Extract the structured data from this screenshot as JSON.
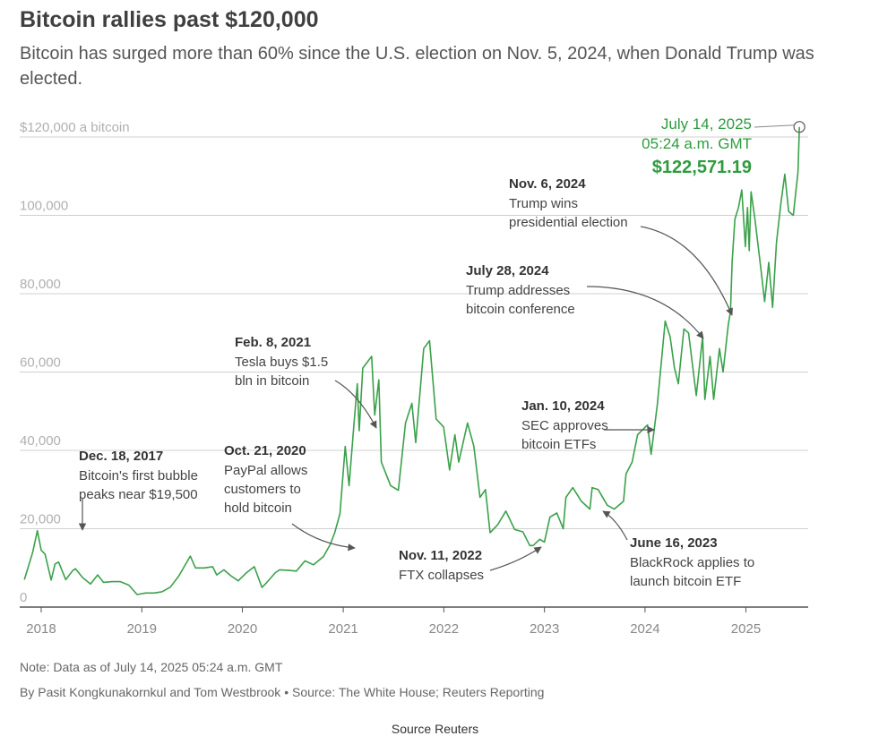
{
  "header": {
    "title": "Bitcoin rallies past $120,000",
    "subtitle": "Bitcoin has surged more than 60% since the U.S. election on Nov. 5, 2024, when Donald Trump was elected."
  },
  "footer": {
    "note": "Note: Data as of July 14, 2025 05:24 a.m. GMT",
    "byline": "By Pasit Kongkunakornkul and Tom Westbrook • Source: The White House; Reuters Reporting",
    "source": "Source Reuters"
  },
  "colors": {
    "line": "#3aa14a",
    "highlight": "#2e9b3e",
    "grid": "#d0d0d0",
    "axis": "#555555",
    "annotation": "#555555",
    "ytick": "#b0b0b0"
  },
  "chart_data": {
    "type": "line",
    "title": "Bitcoin rallies past $120,000",
    "subtitle": "Bitcoin has surged more than 60% since the U.S. election on Nov. 5, 2024, when Donald Trump was elected.",
    "xlabel": "",
    "ylabel": "",
    "ylim": [
      0,
      120000
    ],
    "xlim": [
      "2017-10-15",
      "2025-08-15"
    ],
    "grid": true,
    "x_ticks": [
      "2018",
      "2019",
      "2020",
      "2021",
      "2022",
      "2023",
      "2024",
      "2025"
    ],
    "y_ticks": [
      {
        "value": 0,
        "label": "0"
      },
      {
        "value": 20000,
        "label": "20,000"
      },
      {
        "value": 40000,
        "label": "40,000"
      },
      {
        "value": 60000,
        "label": "60,000"
      },
      {
        "value": 80000,
        "label": "80,000"
      },
      {
        "value": 100000,
        "label": "100,000"
      },
      {
        "value": 120000,
        "label": "$120,000 a bitcoin"
      }
    ],
    "series": [
      {
        "values": [
          [
            "2017-11-01",
            7000
          ],
          [
            "2017-12-01",
            14000
          ],
          [
            "2017-12-18",
            19500
          ],
          [
            "2018-01-01",
            14500
          ],
          [
            "2018-01-15",
            13500
          ],
          [
            "2018-02-06",
            6900
          ],
          [
            "2018-02-20",
            11000
          ],
          [
            "2018-03-05",
            11500
          ],
          [
            "2018-03-31",
            7000
          ],
          [
            "2018-04-25",
            9300
          ],
          [
            "2018-05-05",
            9800
          ],
          [
            "2018-06-01",
            7500
          ],
          [
            "2018-06-29",
            5900
          ],
          [
            "2018-07-25",
            8200
          ],
          [
            "2018-08-15",
            6300
          ],
          [
            "2018-09-15",
            6500
          ],
          [
            "2018-10-15",
            6500
          ],
          [
            "2018-11-15",
            5600
          ],
          [
            "2018-12-15",
            3200
          ],
          [
            "2019-01-15",
            3600
          ],
          [
            "2019-02-15",
            3600
          ],
          [
            "2019-03-15",
            3900
          ],
          [
            "2019-04-15",
            5100
          ],
          [
            "2019-05-15",
            7900
          ],
          [
            "2019-06-26",
            13000
          ],
          [
            "2019-07-15",
            10000
          ],
          [
            "2019-08-15",
            10000
          ],
          [
            "2019-09-15",
            10300
          ],
          [
            "2019-09-30",
            8200
          ],
          [
            "2019-10-26",
            9500
          ],
          [
            "2019-11-20",
            8000
          ],
          [
            "2019-12-17",
            6700
          ],
          [
            "2020-01-15",
            8700
          ],
          [
            "2020-02-13",
            10300
          ],
          [
            "2020-03-12",
            5000
          ],
          [
            "2020-03-30",
            6300
          ],
          [
            "2020-04-30",
            8800
          ],
          [
            "2020-05-15",
            9500
          ],
          [
            "2020-06-15",
            9400
          ],
          [
            "2020-07-15",
            9200
          ],
          [
            "2020-08-15",
            11800
          ],
          [
            "2020-09-15",
            10800
          ],
          [
            "2020-10-21",
            12900
          ],
          [
            "2020-11-15",
            16000
          ],
          [
            "2020-12-01",
            19000
          ],
          [
            "2020-12-20",
            23800
          ],
          [
            "2021-01-08",
            41000
          ],
          [
            "2021-01-22",
            31000
          ],
          [
            "2021-02-08",
            46000
          ],
          [
            "2021-02-21",
            57000
          ],
          [
            "2021-02-28",
            45000
          ],
          [
            "2021-03-13",
            61000
          ],
          [
            "2021-04-14",
            64000
          ],
          [
            "2021-04-25",
            49000
          ],
          [
            "2021-05-10",
            58000
          ],
          [
            "2021-05-19",
            37000
          ],
          [
            "2021-06-22",
            31000
          ],
          [
            "2021-07-20",
            29800
          ],
          [
            "2021-08-15",
            47000
          ],
          [
            "2021-09-07",
            52000
          ],
          [
            "2021-09-21",
            42000
          ],
          [
            "2021-10-20",
            66000
          ],
          [
            "2021-11-10",
            68000
          ],
          [
            "2021-12-04",
            48000
          ],
          [
            "2021-12-31",
            46000
          ],
          [
            "2022-01-22",
            35000
          ],
          [
            "2022-02-10",
            44000
          ],
          [
            "2022-02-24",
            37000
          ],
          [
            "2022-03-28",
            47000
          ],
          [
            "2022-04-20",
            41000
          ],
          [
            "2022-05-12",
            28000
          ],
          [
            "2022-06-01",
            30000
          ],
          [
            "2022-06-18",
            19000
          ],
          [
            "2022-07-15",
            21000
          ],
          [
            "2022-08-14",
            24500
          ],
          [
            "2022-09-15",
            19800
          ],
          [
            "2022-10-15",
            19200
          ],
          [
            "2022-11-09",
            15700
          ],
          [
            "2022-11-21",
            15700
          ],
          [
            "2022-12-15",
            17300
          ],
          [
            "2023-01-01",
            16600
          ],
          [
            "2023-01-21",
            23000
          ],
          [
            "2023-02-15",
            24000
          ],
          [
            "2023-03-10",
            20000
          ],
          [
            "2023-03-20",
            28000
          ],
          [
            "2023-04-14",
            30500
          ],
          [
            "2023-05-15",
            27000
          ],
          [
            "2023-06-15",
            25000
          ],
          [
            "2023-06-23",
            30500
          ],
          [
            "2023-07-15",
            30000
          ],
          [
            "2023-08-17",
            26000
          ],
          [
            "2023-09-11",
            25000
          ],
          [
            "2023-10-15",
            27000
          ],
          [
            "2023-10-24",
            34000
          ],
          [
            "2023-11-15",
            37000
          ],
          [
            "2023-12-05",
            44000
          ],
          [
            "2024-01-10",
            46500
          ],
          [
            "2024-01-23",
            39000
          ],
          [
            "2024-02-15",
            52000
          ],
          [
            "2024-03-14",
            73000
          ],
          [
            "2024-04-01",
            69000
          ],
          [
            "2024-04-17",
            61000
          ],
          [
            "2024-05-01",
            57000
          ],
          [
            "2024-05-21",
            71000
          ],
          [
            "2024-06-07",
            70000
          ],
          [
            "2024-07-05",
            54000
          ],
          [
            "2024-07-28",
            69000
          ],
          [
            "2024-08-05",
            53000
          ],
          [
            "2024-08-24",
            64000
          ],
          [
            "2024-09-06",
            53000
          ],
          [
            "2024-09-27",
            66000
          ],
          [
            "2024-10-10",
            60000
          ],
          [
            "2024-10-29",
            72000
          ],
          [
            "2024-11-06",
            75500
          ],
          [
            "2024-11-12",
            88000
          ],
          [
            "2024-11-22",
            99000
          ],
          [
            "2024-12-05",
            102000
          ],
          [
            "2024-12-17",
            106500
          ],
          [
            "2024-12-30",
            92000
          ],
          [
            "2025-01-07",
            102000
          ],
          [
            "2025-01-13",
            91000
          ],
          [
            "2025-01-20",
            106000
          ],
          [
            "2025-02-03",
            99000
          ],
          [
            "2025-02-25",
            86000
          ],
          [
            "2025-03-10",
            78000
          ],
          [
            "2025-03-25",
            88000
          ],
          [
            "2025-04-08",
            76500
          ],
          [
            "2025-04-22",
            93000
          ],
          [
            "2025-05-08",
            103000
          ],
          [
            "2025-05-22",
            110500
          ],
          [
            "2025-06-05",
            101000
          ],
          [
            "2025-06-22",
            100000
          ],
          [
            "2025-07-01",
            106000
          ],
          [
            "2025-07-09",
            111000
          ],
          [
            "2025-07-14",
            122571.19
          ]
        ]
      }
    ],
    "annotations": [
      {
        "id": "dec-2017",
        "date": "Dec. 18, 2017",
        "text": [
          "Bitcoin's first bubble",
          "peaks near $19,500"
        ]
      },
      {
        "id": "oct-2020",
        "date": "Oct. 21, 2020",
        "text": [
          "PayPal allows",
          "customers to",
          "hold bitcoin"
        ]
      },
      {
        "id": "feb-2021",
        "date": "Feb. 8, 2021",
        "text": [
          "Tesla buys $1.5",
          "bln in bitcoin"
        ]
      },
      {
        "id": "nov-2022",
        "date": "Nov. 11, 2022",
        "text": [
          "FTX collapses"
        ]
      },
      {
        "id": "jun-2023",
        "date": "June 16, 2023",
        "text": [
          "BlackRock applies to",
          "launch bitcoin ETF"
        ]
      },
      {
        "id": "jan-2024",
        "date": "Jan. 10, 2024",
        "text": [
          "SEC approves",
          "bitcoin ETFs"
        ]
      },
      {
        "id": "jul-2024",
        "date": "July 28, 2024",
        "text": [
          "Trump addresses",
          "bitcoin conference"
        ]
      },
      {
        "id": "nov-2024",
        "date": "Nov. 6, 2024",
        "text": [
          "Trump wins",
          "presidential election"
        ]
      }
    ],
    "highlight": {
      "date_line": "July 14, 2025",
      "time_line": "05:24 a.m. GMT",
      "value_label": "$122,571.19",
      "x": "2025-07-14",
      "y": 122571.19
    }
  }
}
